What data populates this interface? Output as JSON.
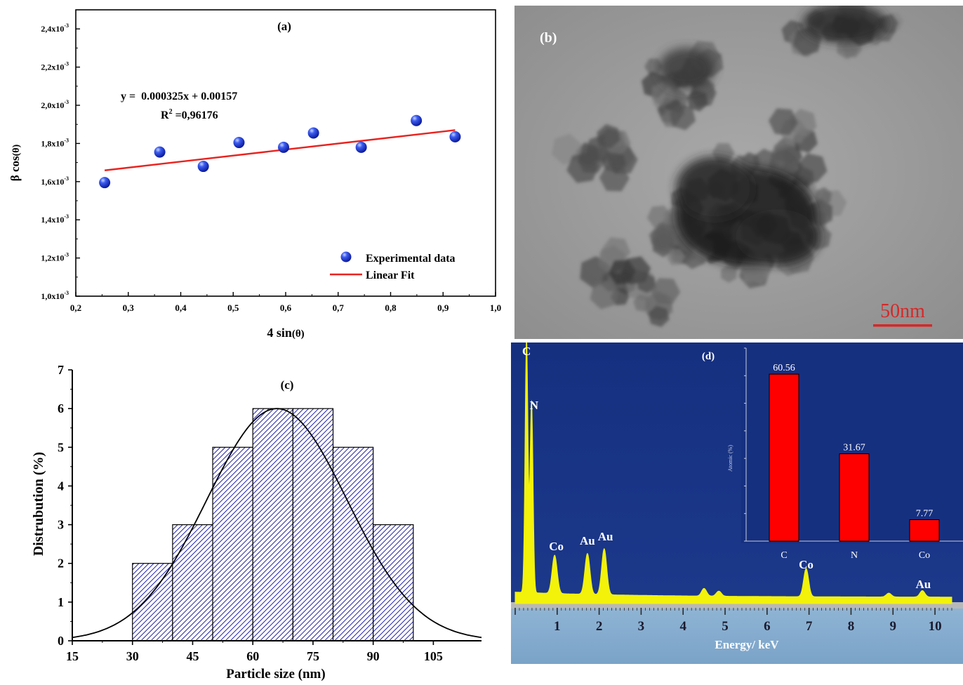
{
  "panel_a": {
    "label": "(a)",
    "equation": "y =  0.000325x + 0.00157",
    "r2_prefix": "R",
    "r2_sup": "2",
    "r2_value": " =0,96176",
    "xlabel_main": "4 sin",
    "xlabel_arg": "(θ)",
    "ylabel_main": "β cos",
    "ylabel_arg": "(θ)",
    "legend_points": "Experimental data",
    "legend_line": "Linear Fit",
    "colors": {
      "points": "#1f3fe0",
      "fit": "#e8231f"
    }
  },
  "panel_b": {
    "label": "(b)",
    "scale_bar": "50nm"
  },
  "panel_c": {
    "label": "(c)",
    "xlabel": "Particle size (nm)",
    "ylabel": "Distrubution (%)",
    "colors": {
      "bars": "#2323a8",
      "curve": "#000000"
    }
  },
  "panel_d": {
    "label": "(d)",
    "xlabel": "Energy/ keV",
    "inset_ylabel": "Atomic (%)",
    "peak_labels": [
      "C",
      "N",
      "Co",
      "Au",
      "Au",
      "Co",
      "Au"
    ],
    "colors": {
      "background": "#1b3585",
      "spectrum": "#f2f20a",
      "inset_bars": "#ff0000"
    }
  },
  "chart_data": [
    {
      "id": "a",
      "type": "scatter",
      "title": "(a)",
      "xlabel": "4 sin(θ)",
      "ylabel": "β cos(θ)",
      "xlim": [
        0.2,
        1.0
      ],
      "ylim": [
        0.001,
        0.0025
      ],
      "x_ticks": [
        "0,2",
        "0,3",
        "0,4",
        "0,5",
        "0,6",
        "0,7",
        "0,8",
        "0,9",
        "1,0"
      ],
      "y_ticks": [
        {
          "base": "1,0x10",
          "exp": "-3"
        },
        {
          "base": "1,2x10",
          "exp": "-3"
        },
        {
          "base": "1,4x10",
          "exp": "-3"
        },
        {
          "base": "1,6x10",
          "exp": "-3"
        },
        {
          "base": "1,8x10",
          "exp": "-3"
        },
        {
          "base": "2,0x10",
          "exp": "-3"
        },
        {
          "base": "2,2x10",
          "exp": "-3"
        },
        {
          "base": "2,4x10",
          "exp": "-3"
        }
      ],
      "series": [
        {
          "name": "Experimental data",
          "x": [
            0.255,
            0.36,
            0.443,
            0.511,
            0.596,
            0.653,
            0.744,
            0.849,
            0.923
          ],
          "y": [
            0.001595,
            0.001755,
            0.00168,
            0.001805,
            0.00178,
            0.001855,
            0.00178,
            0.00192,
            0.001835
          ]
        },
        {
          "name": "Linear Fit",
          "x": [
            0.255,
            0.923
          ],
          "y": [
            0.001659,
            0.00187
          ]
        }
      ],
      "legend": "bottom-right"
    },
    {
      "id": "c",
      "type": "bar",
      "title": "(c)",
      "xlabel": "Particle size (nm)",
      "ylabel": "Distrubution (%)",
      "xlim": [
        15,
        117
      ],
      "ylim": [
        0,
        7
      ],
      "x_ticks": [
        "15",
        "30",
        "45",
        "60",
        "75",
        "90",
        "105"
      ],
      "y_ticks": [
        "0",
        "1",
        "2",
        "3",
        "4",
        "5",
        "6",
        "7"
      ],
      "bins": [
        [
          30,
          40
        ],
        [
          40,
          50
        ],
        [
          50,
          60
        ],
        [
          60,
          70
        ],
        [
          70,
          80
        ],
        [
          80,
          90
        ],
        [
          90,
          100
        ]
      ],
      "values": [
        2,
        3,
        5,
        6,
        6,
        5,
        3
      ],
      "fit_curve": {
        "type": "gaussian",
        "mean": 66,
        "sd": 17.5,
        "peak": 6
      }
    },
    {
      "id": "d",
      "type": "line",
      "title": "(d)",
      "xlabel": "Energy/ keV",
      "xlim": [
        0,
        10.4
      ],
      "x_ticks": [
        "1",
        "2",
        "3",
        "4",
        "5",
        "6",
        "7",
        "8",
        "9",
        "10"
      ],
      "peaks": [
        {
          "label": "C",
          "energy": 0.27,
          "height": 1.0
        },
        {
          "label": "N",
          "energy": 0.39,
          "height": 0.75
        },
        {
          "label": "Co",
          "energy": 0.94,
          "height": 0.15
        },
        {
          "label": "Au",
          "energy": 1.72,
          "height": 0.16
        },
        {
          "label": "Au",
          "energy": 2.12,
          "height": 0.18
        },
        {
          "label": "",
          "energy": 4.5,
          "height": 0.03
        },
        {
          "label": "",
          "energy": 4.85,
          "height": 0.02
        },
        {
          "label": "Co",
          "energy": 6.93,
          "height": 0.11
        },
        {
          "label": "",
          "energy": 8.9,
          "height": 0.015
        },
        {
          "label": "Au",
          "energy": 9.7,
          "height": 0.025
        }
      ]
    },
    {
      "id": "d-inset",
      "type": "bar",
      "ylabel": "Atomic (%)",
      "categories": [
        "C",
        "N",
        "Co"
      ],
      "values": [
        60.56,
        31.67,
        7.77
      ],
      "value_labels": [
        "60.56",
        "31.67",
        "7.77"
      ],
      "ylim": [
        0,
        70
      ]
    }
  ]
}
